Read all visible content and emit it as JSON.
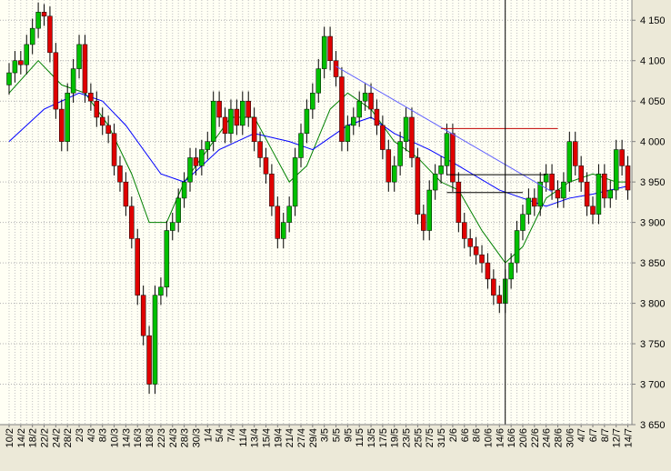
{
  "chart_data": {
    "type": "candlestick",
    "categories": [
      "10/2",
      null,
      "14/2",
      null,
      "18/2",
      null,
      "22/2",
      null,
      "24/2",
      null,
      "28/2",
      null,
      "2/3",
      null,
      "4/3",
      null,
      "8/3",
      null,
      "10/3",
      null,
      "14/3",
      null,
      "16/3",
      null,
      "18/3",
      null,
      "22/3",
      null,
      "24/3",
      null,
      "28/3",
      null,
      "30/3",
      null,
      "1/4",
      null,
      "5/4",
      null,
      "7/4",
      null,
      "11/4",
      null,
      "13/4",
      null,
      "15/4",
      null,
      "19/4",
      null,
      "21/4",
      null,
      "27/4",
      null,
      "29/4",
      null,
      "3/5",
      null,
      "5/5",
      null,
      "9/5",
      null,
      "11/5",
      null,
      "13/5",
      null,
      "17/5",
      null,
      "19/5",
      null,
      "23/5",
      null,
      "25/5",
      null,
      "27/5",
      null,
      "31/5",
      null,
      "2/6",
      null,
      "6/6",
      null,
      "8/6",
      null,
      "10/6",
      null,
      "14/6",
      null,
      "16/6",
      null,
      "20/6",
      null,
      "22/6",
      null,
      "24/6",
      null,
      "28/6",
      null,
      "30/6",
      null,
      "4/7",
      null,
      "6/7",
      null,
      "8/7",
      null,
      "12/7",
      null,
      "14/7"
    ],
    "open": [
      4070,
      4085,
      4100,
      4095,
      4120,
      4140,
      4160,
      4155,
      4110,
      4040,
      4000,
      4060,
      4090,
      4120,
      4060,
      4050,
      4030,
      4020,
      4010,
      3970,
      3950,
      3920,
      3880,
      3810,
      3760,
      3700,
      3810,
      3820,
      3890,
      3900,
      3930,
      3950,
      3980,
      3970,
      3990,
      4000,
      4050,
      4030,
      4010,
      4040,
      4020,
      4050,
      4030,
      4000,
      3980,
      3960,
      3920,
      3880,
      3900,
      3920,
      3980,
      4010,
      4040,
      4060,
      4090,
      4130,
      4100,
      4080,
      4000,
      4020,
      4030,
      4050,
      4060,
      4040,
      4020,
      3990,
      3950,
      3970,
      4000,
      4030,
      3980,
      3910,
      3890,
      3940,
      3960,
      3970,
      4010,
      3950,
      3900,
      3880,
      3870,
      3860,
      3850,
      3830,
      3810,
      3800,
      3830,
      3850,
      3890,
      3910,
      3930,
      3920,
      3950,
      3960,
      3940,
      3930,
      3950,
      4000,
      3970,
      3950,
      3920,
      3910,
      3960,
      3930,
      3940,
      3990,
      3970
    ],
    "high": [
      4097,
      4112,
      4112,
      4132,
      4152,
      4172,
      4170,
      4167,
      4122,
      4052,
      4072,
      4102,
      4132,
      4132,
      4072,
      4062,
      4042,
      4032,
      4022,
      3982,
      3962,
      3932,
      3892,
      3822,
      3772,
      3822,
      3832,
      3902,
      3912,
      3942,
      3962,
      3992,
      3992,
      4002,
      4012,
      4062,
      4062,
      4042,
      4052,
      4052,
      4062,
      4062,
      4042,
      4012,
      3992,
      3972,
      3932,
      3912,
      3932,
      3992,
      4022,
      4052,
      4072,
      4102,
      4142,
      4142,
      4112,
      4092,
      4032,
      4042,
      4062,
      4072,
      4072,
      4052,
      4032,
      4002,
      3982,
      4012,
      4042,
      4042,
      3992,
      3922,
      3952,
      3972,
      3982,
      4022,
      4022,
      3962,
      3912,
      3892,
      3882,
      3872,
      3862,
      3842,
      3822,
      3842,
      3862,
      3902,
      3922,
      3942,
      3942,
      3962,
      3972,
      3972,
      3952,
      3962,
      4012,
      4012,
      3982,
      3962,
      3932,
      3972,
      3972,
      3952,
      4002,
      4002,
      3982
    ],
    "low": [
      4058,
      4073,
      4083,
      4083,
      4108,
      4128,
      4143,
      4098,
      4028,
      3988,
      3988,
      4048,
      4078,
      4048,
      4038,
      4018,
      4008,
      3998,
      3958,
      3938,
      3908,
      3868,
      3798,
      3748,
      3688,
      3688,
      3798,
      3808,
      3878,
      3888,
      3918,
      3938,
      3958,
      3958,
      3978,
      3988,
      4018,
      3998,
      3998,
      4008,
      4008,
      4018,
      3988,
      3968,
      3948,
      3908,
      3868,
      3868,
      3888,
      3908,
      3968,
      3998,
      4028,
      4048,
      4078,
      4088,
      4068,
      3988,
      3988,
      4008,
      4018,
      4038,
      4028,
      4008,
      3978,
      3938,
      3938,
      3958,
      3988,
      3968,
      3898,
      3878,
      3878,
      3928,
      3948,
      3958,
      3938,
      3888,
      3868,
      3858,
      3848,
      3838,
      3818,
      3798,
      3788,
      3788,
      3818,
      3838,
      3878,
      3898,
      3908,
      3908,
      3938,
      3928,
      3918,
      3918,
      3938,
      3958,
      3938,
      3908,
      3898,
      3898,
      3918,
      3918,
      3928,
      3958,
      3928
    ],
    "close": [
      4085,
      4100,
      4095,
      4120,
      4140,
      4160,
      4155,
      4110,
      4040,
      4000,
      4060,
      4090,
      4120,
      4060,
      4050,
      4030,
      4020,
      4010,
      3970,
      3950,
      3920,
      3880,
      3810,
      3760,
      3700,
      3810,
      3820,
      3890,
      3900,
      3930,
      3950,
      3980,
      3970,
      3990,
      4000,
      4050,
      4030,
      4010,
      4040,
      4020,
      4050,
      4030,
      4000,
      3980,
      3960,
      3920,
      3880,
      3900,
      3920,
      3980,
      4010,
      4040,
      4060,
      4090,
      4130,
      4100,
      4080,
      4000,
      4020,
      4030,
      4050,
      4060,
      4040,
      4020,
      3990,
      3950,
      3970,
      4000,
      4030,
      3980,
      3910,
      3890,
      3940,
      3960,
      3970,
      4010,
      3950,
      3900,
      3880,
      3870,
      3860,
      3850,
      3830,
      3810,
      3800,
      3830,
      3850,
      3890,
      3910,
      3930,
      3920,
      3950,
      3960,
      3940,
      3930,
      3950,
      4000,
      3970,
      3950,
      3920,
      3910,
      3960,
      3930,
      3940,
      3990,
      3970,
      3940
    ],
    "up_color": "#00c000",
    "down_color": "#e00000",
    "moving_averages": [
      {
        "color": "#008000",
        "x": [
          0,
          5,
          9,
          13,
          17,
          21,
          24,
          27,
          30,
          34,
          38,
          42,
          45,
          48,
          51,
          55,
          58,
          62,
          66,
          70,
          74,
          77,
          81,
          85,
          88,
          92,
          96,
          100,
          104,
          106
        ],
        "values": [
          4060,
          4100,
          4070,
          4060,
          4020,
          3960,
          3900,
          3900,
          3950,
          3990,
          4030,
          4030,
          3990,
          3950,
          3970,
          4040,
          4060,
          4040,
          4000,
          3980,
          3950,
          3940,
          3890,
          3850,
          3870,
          3930,
          3950,
          3960,
          3950,
          3950
        ]
      },
      {
        "color": "#0000ff",
        "x": [
          0,
          6,
          12,
          16,
          20,
          26,
          30,
          36,
          42,
          48,
          52,
          58,
          62,
          66,
          72,
          77,
          84,
          88,
          92,
          96,
          100,
          106
        ],
        "values": [
          4000,
          4040,
          4060,
          4050,
          4020,
          3960,
          3950,
          3990,
          4010,
          4000,
          3990,
          4020,
          4030,
          4010,
          3990,
          3970,
          3940,
          3930,
          3920,
          3930,
          3935,
          3945
        ]
      }
    ],
    "trend_lines": [
      {
        "color": "#6060ff",
        "x": [
          56,
          93
        ],
        "values": [
          4093,
          3938
        ]
      },
      {
        "color": "#c00000",
        "x": [
          74,
          94
        ],
        "values": [
          4016,
          4016
        ]
      },
      {
        "color": "#000000",
        "x": [
          75,
          92
        ],
        "values": [
          3959,
          3959
        ]
      },
      {
        "color": "#000000",
        "x": [
          75,
          88
        ],
        "values": [
          3937,
          3937
        ]
      }
    ],
    "vline": 85,
    "ylim": [
      3650,
      4175
    ],
    "yticks": [
      {
        "value": 3650,
        "label": "3 650"
      },
      {
        "value": 3700,
        "label": "3 700"
      },
      {
        "value": 3750,
        "label": "3 750"
      },
      {
        "value": 3800,
        "label": "3 800"
      },
      {
        "value": 3850,
        "label": "3 850"
      },
      {
        "value": 3900,
        "label": "3 900"
      },
      {
        "value": 3950,
        "label": "3 950"
      },
      {
        "value": 4000,
        "label": "4 000"
      },
      {
        "value": 4050,
        "label": "4 050"
      },
      {
        "value": 4100,
        "label": "4 100"
      },
      {
        "value": 4150,
        "label": "4 150"
      }
    ],
    "grid": true
  }
}
